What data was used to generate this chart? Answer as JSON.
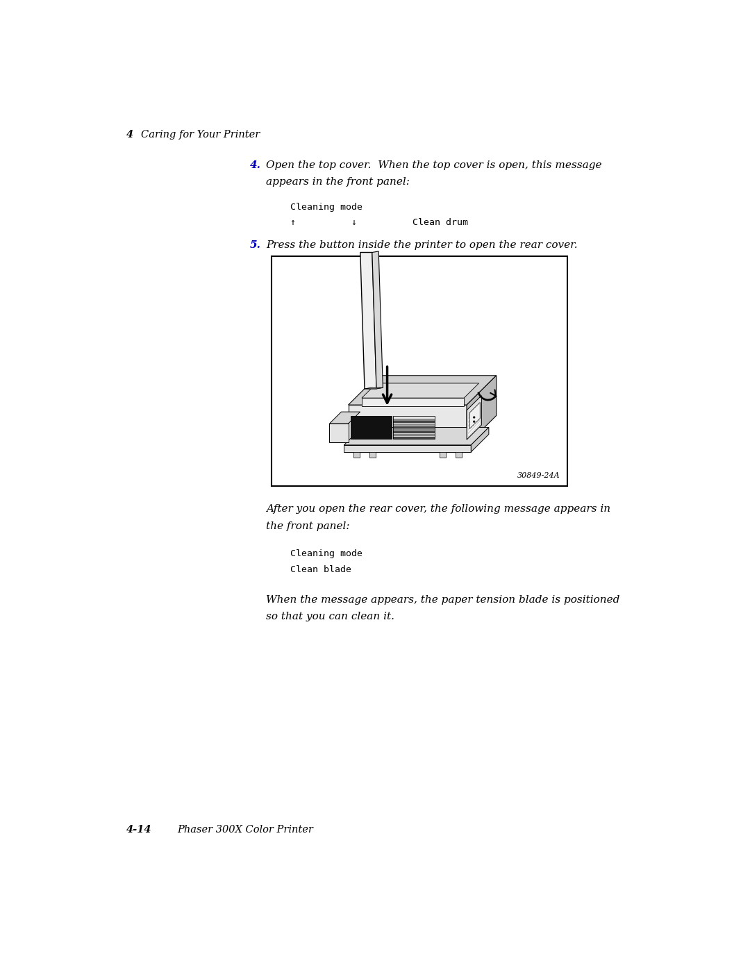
{
  "background_color": "#ffffff",
  "page_width": 10.8,
  "page_height": 13.97,
  "header_number": "4",
  "header_text": "Caring for Your Printer",
  "step4_number_color": "#0000bb",
  "step5_number_color": "#0000bb",
  "code_block1_lines": [
    "Cleaning mode",
    "↑          ↓          Clean drum"
  ],
  "code_block2_lines": [
    "Cleaning mode",
    "Clean blade"
  ],
  "image_caption": "30849-24A",
  "footer_number": "4-14",
  "footer_text": "Phaser 300X Color Printer"
}
